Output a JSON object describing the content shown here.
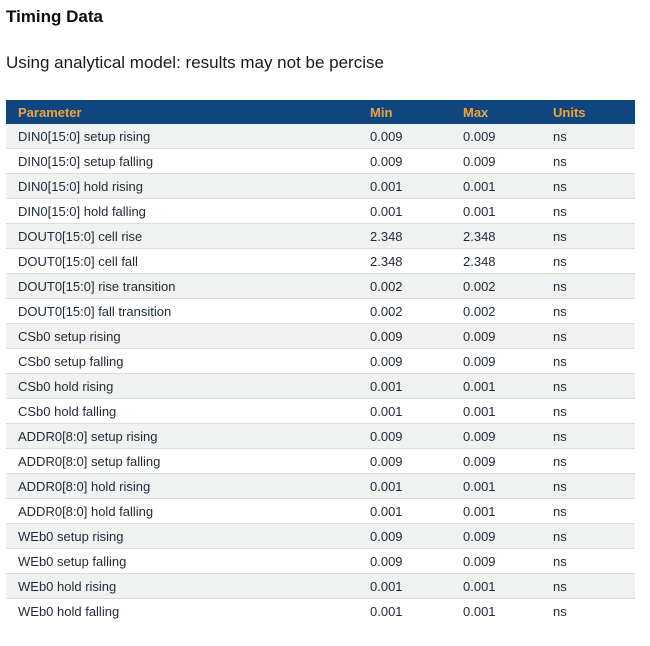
{
  "page": {
    "title": "Timing Data",
    "subtitle": "Using analytical model: results may not be percise"
  },
  "table": {
    "columns": [
      "Parameter",
      "Min",
      "Max",
      "Units"
    ],
    "rows": [
      {
        "parameter": "DIN0[15:0] setup rising",
        "min": "0.009",
        "max": "0.009",
        "units": "ns"
      },
      {
        "parameter": "DIN0[15:0] setup falling",
        "min": "0.009",
        "max": "0.009",
        "units": "ns"
      },
      {
        "parameter": "DIN0[15:0] hold rising",
        "min": "0.001",
        "max": "0.001",
        "units": "ns"
      },
      {
        "parameter": "DIN0[15:0] hold falling",
        "min": "0.001",
        "max": "0.001",
        "units": "ns"
      },
      {
        "parameter": "DOUT0[15:0] cell rise",
        "min": "2.348",
        "max": "2.348",
        "units": "ns"
      },
      {
        "parameter": "DOUT0[15:0] cell fall",
        "min": "2.348",
        "max": "2.348",
        "units": "ns"
      },
      {
        "parameter": "DOUT0[15:0] rise transition",
        "min": "0.002",
        "max": "0.002",
        "units": "ns"
      },
      {
        "parameter": "DOUT0[15:0] fall transition",
        "min": "0.002",
        "max": "0.002",
        "units": "ns"
      },
      {
        "parameter": "CSb0 setup rising",
        "min": "0.009",
        "max": "0.009",
        "units": "ns"
      },
      {
        "parameter": "CSb0 setup falling",
        "min": "0.009",
        "max": "0.009",
        "units": "ns"
      },
      {
        "parameter": "CSb0 hold rising",
        "min": "0.001",
        "max": "0.001",
        "units": "ns"
      },
      {
        "parameter": "CSb0 hold falling",
        "min": "0.001",
        "max": "0.001",
        "units": "ns"
      },
      {
        "parameter": "ADDR0[8:0] setup rising",
        "min": "0.009",
        "max": "0.009",
        "units": "ns"
      },
      {
        "parameter": "ADDR0[8:0] setup falling",
        "min": "0.009",
        "max": "0.009",
        "units": "ns"
      },
      {
        "parameter": "ADDR0[8:0] hold rising",
        "min": "0.001",
        "max": "0.001",
        "units": "ns"
      },
      {
        "parameter": "ADDR0[8:0] hold falling",
        "min": "0.001",
        "max": "0.001",
        "units": "ns"
      },
      {
        "parameter": "WEb0 setup rising",
        "min": "0.009",
        "max": "0.009",
        "units": "ns"
      },
      {
        "parameter": "WEb0 setup falling",
        "min": "0.009",
        "max": "0.009",
        "units": "ns"
      },
      {
        "parameter": "WEb0 hold rising",
        "min": "0.001",
        "max": "0.001",
        "units": "ns"
      },
      {
        "parameter": "WEb0 hold falling",
        "min": "0.001",
        "max": "0.001",
        "units": "ns"
      }
    ]
  },
  "colors": {
    "header_bg": "#0f4680",
    "header_text": "#efa53d",
    "row_alt_bg": "#f0f1f1",
    "row_text": "#1e2a38",
    "divider": "#d9dde1"
  }
}
